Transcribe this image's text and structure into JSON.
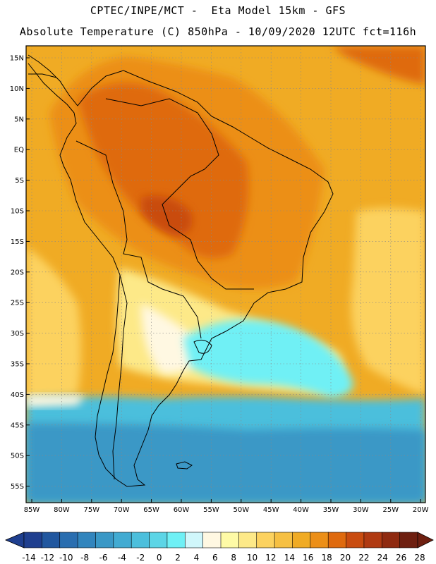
{
  "header": {
    "line1": "CPTEC/INPE/MCT -  Eta Model 15km - GFS",
    "line2": "Absolute Temperature (C) 850hPa - 10/09/2020 12UTC fct=116h"
  },
  "lat_labels": [
    "15N",
    "10N",
    "5N",
    "EQ",
    "5S",
    "10S",
    "15S",
    "20S",
    "25S",
    "30S",
    "35S",
    "40S",
    "45S",
    "50S",
    "55S"
  ],
  "lon_labels": [
    "85W",
    "80W",
    "75W",
    "70W",
    "65W",
    "60W",
    "55W",
    "50W",
    "45W",
    "40W",
    "35W",
    "30W",
    "25W",
    "20W"
  ],
  "colorbar": {
    "labels": [
      "-14",
      "-12",
      "-10",
      "-8",
      "-6",
      "-4",
      "-2",
      "0",
      "2",
      "4",
      "6",
      "8",
      "10",
      "12",
      "14",
      "16",
      "18",
      "20",
      "22",
      "24",
      "26",
      "28"
    ],
    "colors": [
      "#1f3f8f",
      "#21579f",
      "#2a6eb0",
      "#3285bd",
      "#3a98c6",
      "#42abd2",
      "#4cbfdc",
      "#5cd5e6",
      "#6ff0f5",
      "#d0f7fb",
      "#fff8e2",
      "#fefaa6",
      "#fde988",
      "#fcd25f",
      "#f6c043",
      "#f0ab24",
      "#ec8f18",
      "#df6a0e",
      "#c94c10",
      "#b03a12",
      "#8f2a10",
      "#6e1f10"
    ]
  },
  "colors": {
    "land_warm": "#d8600f",
    "ocean_warm": "#f0ab24",
    "cold_ocean": "#3a9dc8",
    "frame": "#000000"
  }
}
